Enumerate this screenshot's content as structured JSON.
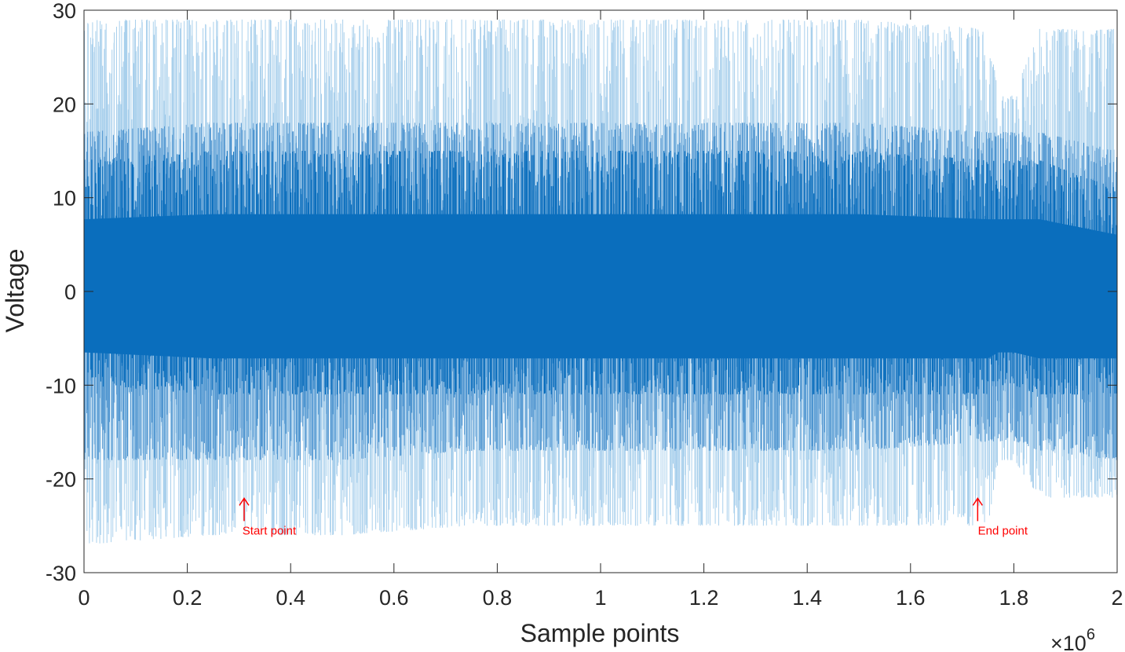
{
  "chart_data": {
    "type": "line",
    "xlabel": "Sample points",
    "ylabel": "Voltage",
    "x_exponent_base": "×10",
    "x_exponent_power": "6",
    "xlim": [
      0,
      2
    ],
    "ylim": [
      -30,
      30
    ],
    "x_ticks": [
      "0",
      "0.2",
      "0.4",
      "0.6",
      "0.8",
      "1",
      "1.2",
      "1.4",
      "1.6",
      "1.8",
      "2"
    ],
    "y_ticks": [
      "-30",
      "-20",
      "-10",
      "0",
      "10",
      "20",
      "30"
    ],
    "grid": false,
    "colors": {
      "outer": "#a9d0ec",
      "mid": "#4f95d0",
      "core": "#0a6ebd",
      "annotation": "#ff0000",
      "axis": "#262626"
    },
    "envelope": {
      "x": [
        0,
        0.25,
        0.5,
        0.75,
        1.0,
        1.25,
        1.5,
        1.75,
        1.77,
        1.8,
        1.85,
        2.0
      ],
      "outer_upper": [
        29,
        29,
        29,
        29,
        29,
        29,
        29,
        28,
        21,
        21,
        28,
        28
      ],
      "outer_lower": [
        -27,
        -26,
        -26,
        -25,
        -25,
        -25,
        -25,
        -25,
        -18,
        -18,
        -22,
        -22
      ],
      "mid_upper": [
        17,
        18,
        18,
        18,
        18,
        18,
        18,
        17,
        17,
        17,
        17,
        15
      ],
      "mid_lower": [
        -18,
        -18,
        -18,
        -17,
        -17,
        -17,
        -17,
        -16,
        -16,
        -16,
        -17,
        -18
      ],
      "core_upper": [
        14,
        15,
        15,
        15,
        15,
        15,
        15,
        14,
        14,
        14,
        14,
        11
      ],
      "core_lower": [
        -10,
        -11,
        -11,
        -11,
        -11,
        -11,
        -11,
        -11,
        -10,
        -10,
        -11,
        -11
      ]
    },
    "annotations": [
      {
        "text": "Start point",
        "x": 0.31,
        "y": -24.5
      },
      {
        "text": "End point",
        "x": 1.73,
        "y": -24.5
      }
    ]
  }
}
